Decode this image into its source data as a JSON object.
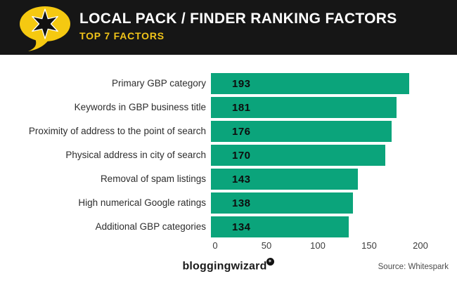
{
  "header": {
    "title": "LOCAL PACK / FINDER RANKING FACTORS",
    "subtitle": "TOP 7 FACTORS",
    "bg_color": "#161616",
    "accent_yellow": "#F0C419",
    "logo_icon": "speech-bubble-starburst-icon"
  },
  "chart_data": {
    "type": "bar",
    "orientation": "horizontal",
    "title": "Local Pack / Finder Ranking Factors — Top 7 Factors",
    "categories": [
      "Primary GBP category",
      "Keywords in GBP business title",
      "Proximity of address to the point of search",
      "Physical address in city of search",
      "Removal of spam listings",
      "High numerical Google ratings",
      "Additional GBP categories"
    ],
    "values": [
      193,
      181,
      176,
      170,
      143,
      138,
      134
    ],
    "bar_color": "#0BA47B",
    "value_label_position": "inside-start",
    "xlabel": "",
    "ylabel": "",
    "xlim": [
      0,
      200
    ],
    "xticks": [
      0,
      50,
      100,
      150,
      200
    ],
    "grid": false,
    "legend": false
  },
  "footer": {
    "brand": "bloggingwizard",
    "brand_badge_icon": "star-badge-icon",
    "brand_badge_glyph": "✶",
    "source": "Source: Whitespark"
  }
}
